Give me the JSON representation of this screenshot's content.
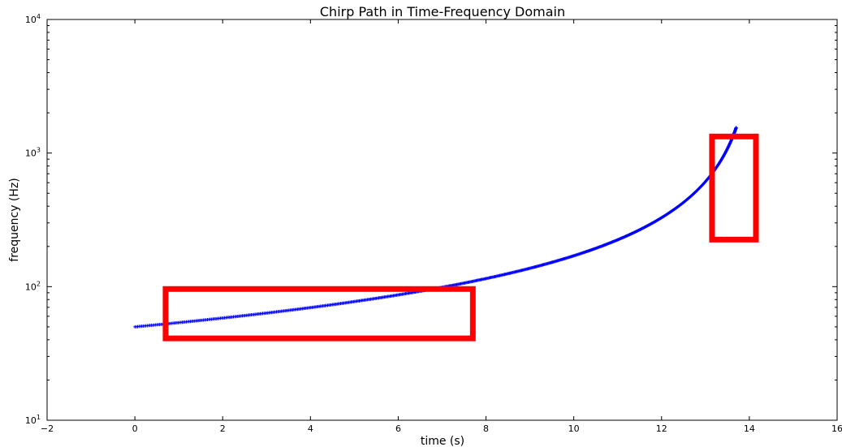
{
  "chart_data": {
    "type": "scatter",
    "title": "Chirp Path in Time-Frequency Domain",
    "xlabel": "time (s)",
    "ylabel": "frequency (Hz)",
    "xlim": [
      -2,
      16
    ],
    "ylim": [
      10,
      10000
    ],
    "yscale": "log",
    "grid": false,
    "x_ticks": [
      -2,
      0,
      2,
      4,
      6,
      8,
      10,
      12,
      14,
      16
    ],
    "x_tick_labels": [
      "−2",
      "0",
      "2",
      "4",
      "6",
      "8",
      "10",
      "12",
      "14",
      "16"
    ],
    "y_ticks": [
      10,
      100,
      1000,
      10000
    ],
    "y_tick_labels": [
      {
        "base": "10",
        "exp": "1"
      },
      {
        "base": "10",
        "exp": "2"
      },
      {
        "base": "10",
        "exp": "3"
      },
      {
        "base": "10",
        "exp": "4"
      }
    ],
    "series": [
      {
        "marker": "+",
        "color": "#0000ff",
        "curve": "chirp",
        "t_start": 0,
        "t_end": 13.7,
        "f_start": 50,
        "f_end": 1550
      }
    ],
    "annotations": [
      {
        "type": "rectangle",
        "color": "#ff0000",
        "x": [
          0.7,
          7.7
        ],
        "y": [
          41,
          96
        ]
      },
      {
        "type": "rectangle",
        "color": "#ff0000",
        "x": [
          13.15,
          14.15
        ],
        "y": [
          225,
          1330
        ]
      }
    ]
  }
}
